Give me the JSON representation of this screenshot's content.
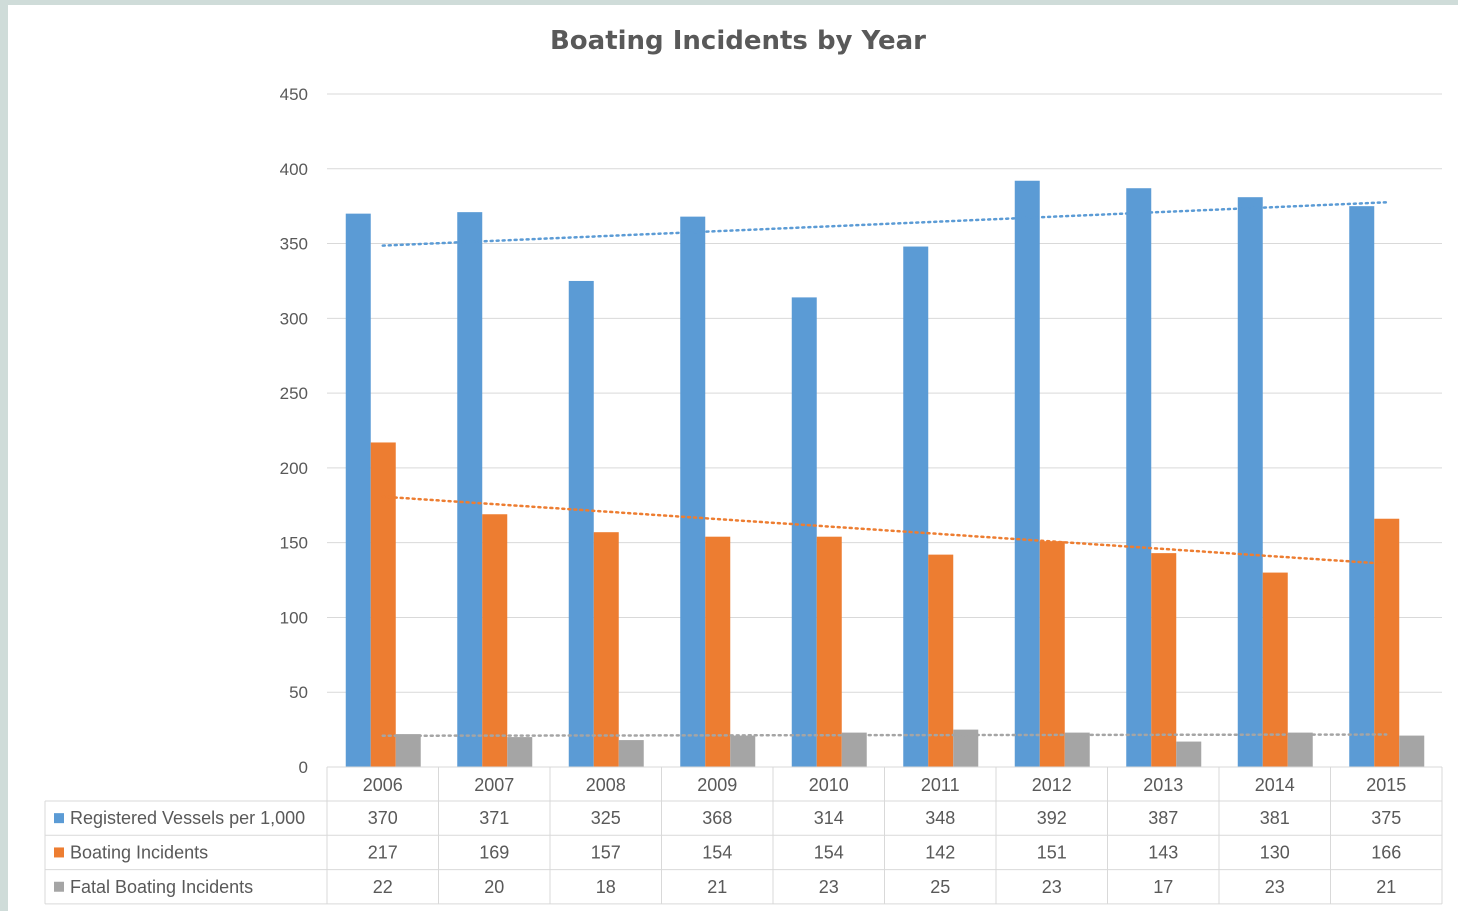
{
  "chart_data": {
    "type": "bar",
    "title": "Boating Incidents by Year",
    "categories": [
      "2006",
      "2007",
      "2008",
      "2009",
      "2010",
      "2011",
      "2012",
      "2013",
      "2014",
      "2015"
    ],
    "series": [
      {
        "name": "Registered Vessels per 1,000",
        "color": "#5b9bd5",
        "values": [
          370,
          371,
          325,
          368,
          314,
          348,
          392,
          387,
          381,
          375
        ]
      },
      {
        "name": "Boating Incidents",
        "color": "#ed7d31",
        "values": [
          217,
          169,
          157,
          154,
          154,
          142,
          151,
          143,
          130,
          166
        ]
      },
      {
        "name": "Fatal Boating Incidents",
        "color": "#a5a5a5",
        "values": [
          22,
          20,
          18,
          21,
          23,
          25,
          23,
          17,
          23,
          21
        ]
      }
    ],
    "trendlines": [
      {
        "series": "Registered Vessels per 1,000",
        "type": "linear",
        "style": "dotted"
      },
      {
        "series": "Boating Incidents",
        "type": "linear",
        "style": "dotted"
      },
      {
        "series": "Fatal Boating Incidents",
        "type": "linear",
        "style": "dotted"
      }
    ],
    "ylim": [
      0,
      450
    ],
    "yticks": [
      0,
      50,
      100,
      150,
      200,
      250,
      300,
      350,
      400,
      450
    ],
    "grid": true,
    "legend": "data-table-below"
  }
}
